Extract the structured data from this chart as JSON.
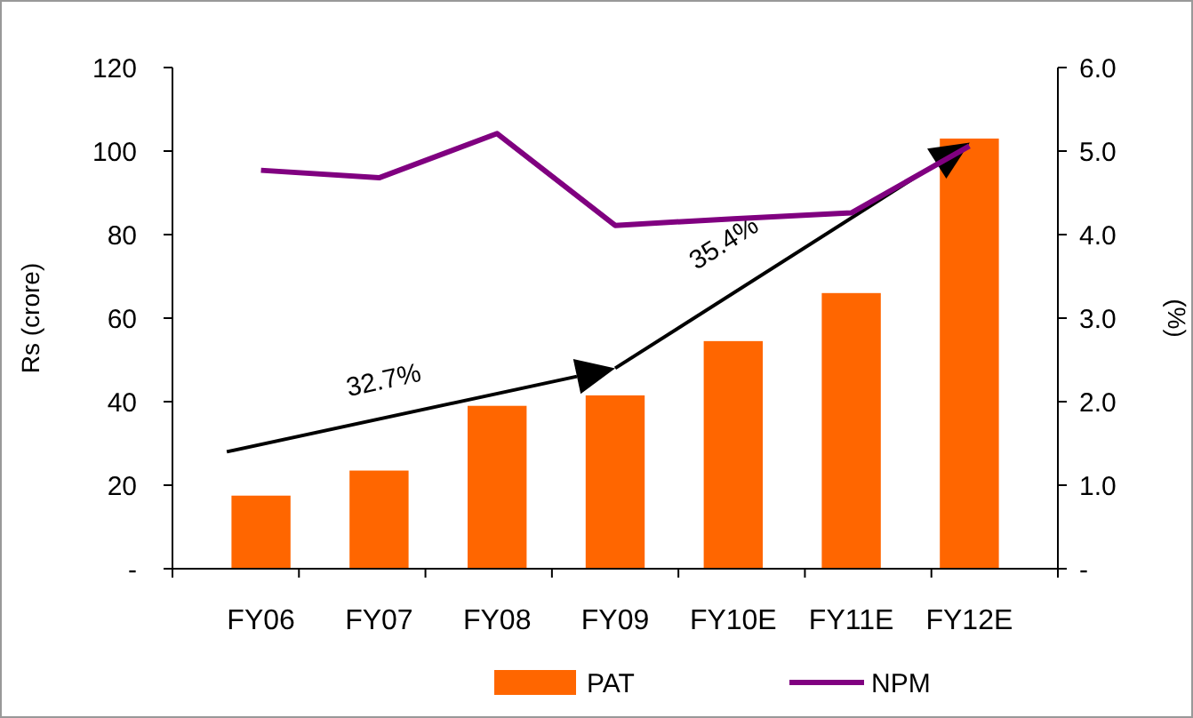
{
  "chart_data": {
    "type": "bar",
    "ylabel": "Rs (crore)",
    "y2label": "(%)",
    "categories": [
      "FY06",
      "FY07",
      "FY08",
      "FY09",
      "FY10E",
      "FY11E",
      "FY12E"
    ],
    "series": [
      {
        "name": "PAT",
        "color": "#ff6600",
        "values": [
          17.5,
          23.5,
          39,
          41.5,
          54.5,
          66,
          103
        ]
      },
      {
        "name": "NPM",
        "type": "line",
        "axis": "y2",
        "color": "#800080",
        "values": [
          4.77,
          4.68,
          5.21,
          4.11,
          4.19,
          4.26,
          5.06
        ]
      }
    ],
    "ylim": [
      0,
      120
    ],
    "yticks": [
      {
        "value": 0,
        "label": "-"
      },
      20,
      40,
      60,
      80,
      100,
      120
    ],
    "y2lim": [
      0,
      6
    ],
    "y2ticks": [
      {
        "value": 0,
        "label": "-"
      },
      {
        "value": 1,
        "label": "1.0"
      },
      {
        "value": 2,
        "label": "2.0"
      },
      {
        "value": 3,
        "label": "3.0"
      },
      {
        "value": 4,
        "label": "4.0"
      },
      {
        "value": 5,
        "label": "5.0"
      },
      {
        "value": 6,
        "label": "6.0"
      }
    ],
    "annotations": [
      "32.7%",
      "35.4%"
    ],
    "legend": "bottom",
    "grid": false,
    "marker": "none",
    "line_style": "solid"
  }
}
